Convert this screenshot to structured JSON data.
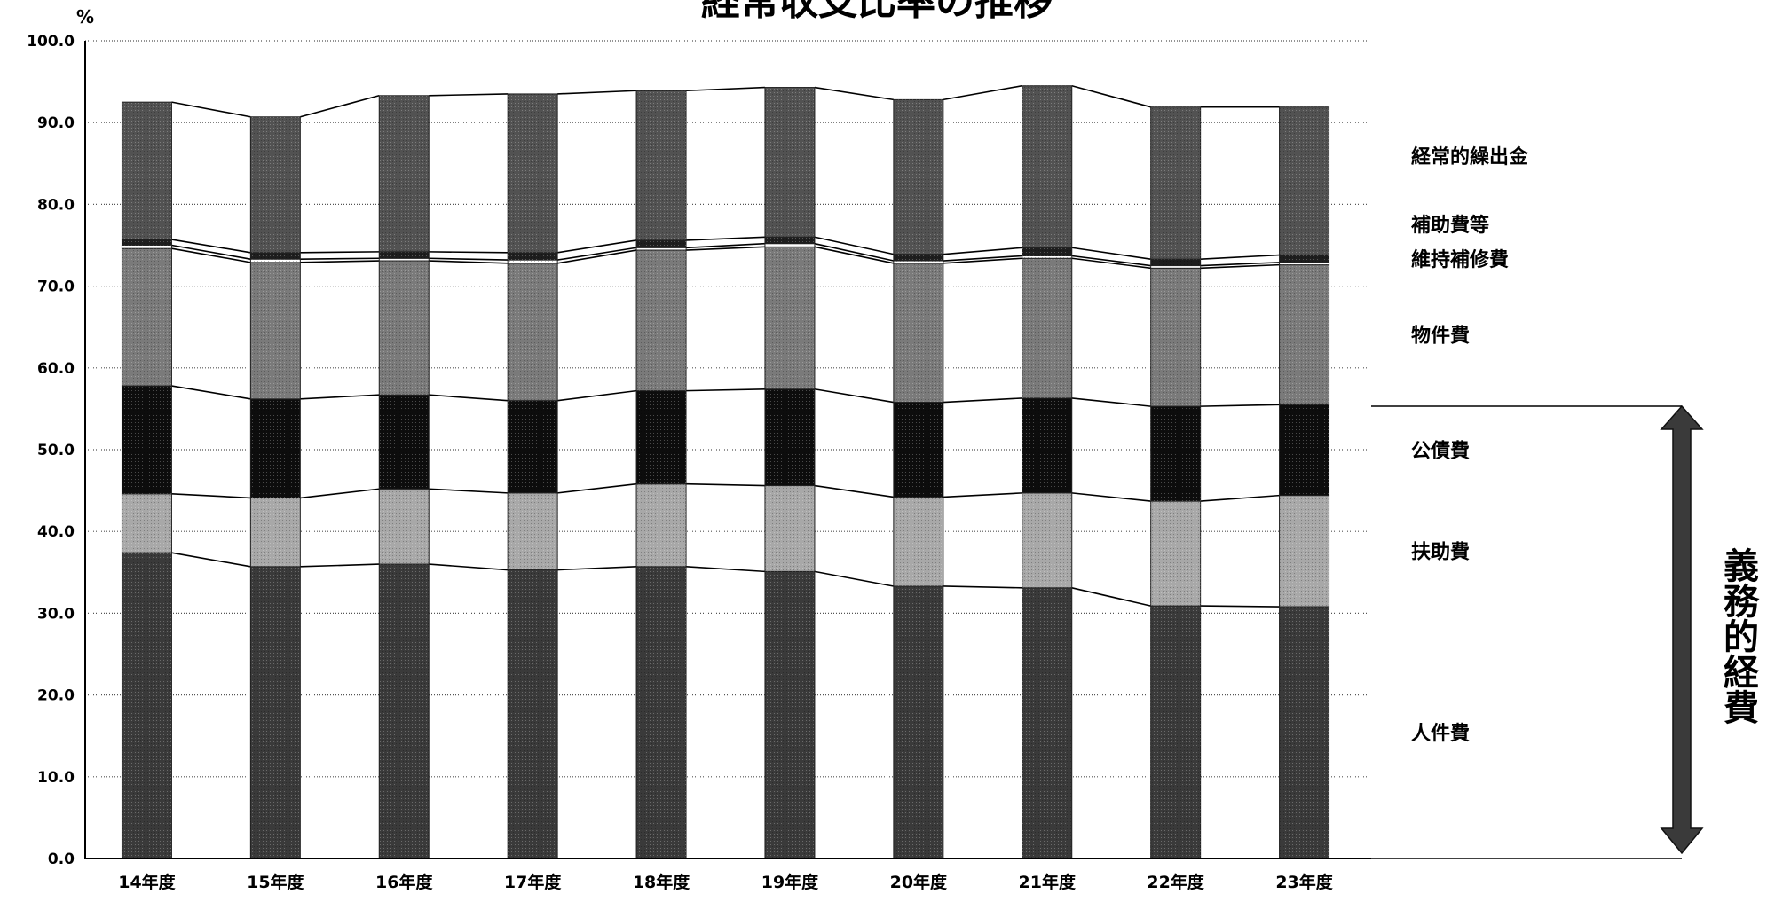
{
  "chart_data": {
    "type": "bar",
    "stacked": true,
    "title": "経常収支比率の推移",
    "ylabel": "%",
    "ylim": [
      0,
      100
    ],
    "y_ticks": [
      "0.0",
      "10.0",
      "20.0",
      "30.0",
      "40.0",
      "50.0",
      "60.0",
      "70.0",
      "80.0",
      "90.0",
      "100.0"
    ],
    "grid": true,
    "legend_position": "right",
    "categories": [
      "14年度",
      "15年度",
      "16年度",
      "17年度",
      "18年度",
      "19年度",
      "20年度",
      "21年度",
      "22年度",
      "23年度"
    ],
    "series": [
      {
        "name": "人件費",
        "color": "#3a3a3a",
        "values": [
          37.4,
          35.7,
          36.0,
          35.3,
          35.7,
          35.1,
          33.3,
          33.1,
          30.9,
          30.8
        ]
      },
      {
        "name": "扶助費",
        "color": "#a8a8a8",
        "values": [
          7.2,
          8.4,
          9.2,
          9.4,
          10.1,
          10.5,
          10.9,
          11.6,
          12.8,
          13.6
        ]
      },
      {
        "name": "公債費",
        "color": "#0d0d0d",
        "values": [
          13.2,
          12.1,
          11.5,
          11.3,
          11.4,
          11.8,
          11.6,
          11.6,
          11.6,
          11.1
        ]
      },
      {
        "name": "物件費",
        "color": "#7a7a7a",
        "values": [
          16.8,
          16.7,
          16.4,
          16.8,
          17.2,
          17.4,
          17.0,
          17.1,
          16.9,
          17.1
        ]
      },
      {
        "name": "維持補修費",
        "color": "#ffffff",
        "values": [
          0.4,
          0.4,
          0.3,
          0.4,
          0.3,
          0.4,
          0.3,
          0.3,
          0.3,
          0.3
        ]
      },
      {
        "name": "補助費等",
        "color": "#1e1e1e",
        "values": [
          0.7,
          0.8,
          0.8,
          0.9,
          0.9,
          0.8,
          0.8,
          1.0,
          0.8,
          0.9
        ]
      },
      {
        "name": "経常的繰出金",
        "color": "#525252",
        "values": [
          16.8,
          16.6,
          19.1,
          19.4,
          18.3,
          18.3,
          18.9,
          19.8,
          18.6,
          18.1
        ]
      }
    ],
    "bracket_label": "義務的経費"
  }
}
